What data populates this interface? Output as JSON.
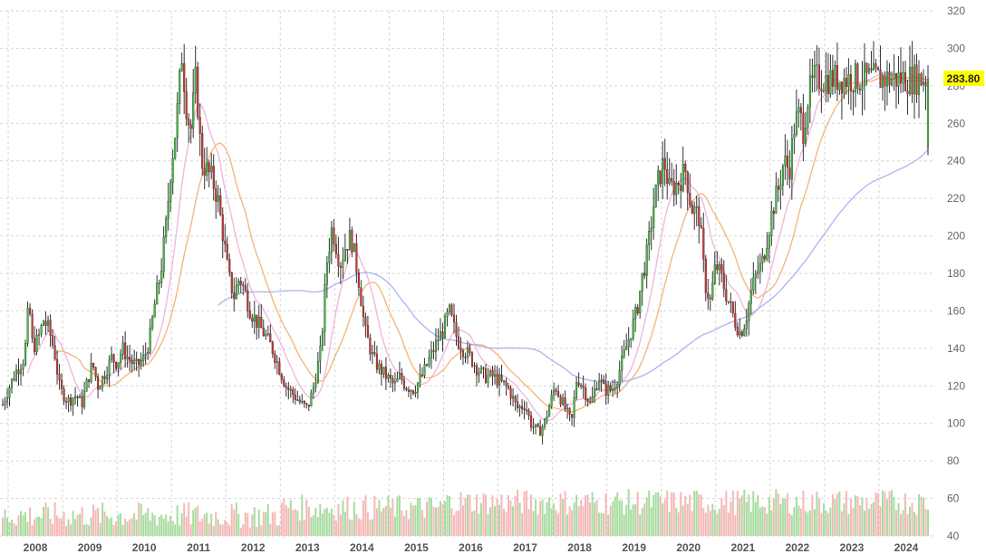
{
  "chart_data": {
    "type": "candlestick",
    "title": "",
    "xlabel": "",
    "ylabel": "",
    "ylim": [
      40,
      320
    ],
    "y_ticks": [
      40,
      60,
      80,
      100,
      120,
      140,
      160,
      180,
      200,
      220,
      240,
      260,
      280,
      300,
      320
    ],
    "x_ticks": [
      "2008",
      "2009",
      "2010",
      "2011",
      "2012",
      "2013",
      "2014",
      "2015",
      "2016",
      "2017",
      "2018",
      "2019",
      "2020",
      "2021",
      "2022",
      "2023",
      "2024"
    ],
    "x_start": 2007.85,
    "x_end": 2025.0,
    "grid": true,
    "last_price": {
      "label": "283.80",
      "value": 283.8,
      "color": "#ffff00"
    },
    "colors": {
      "up": "#44bb44",
      "down": "#cc3333",
      "wick": "#333333",
      "vol_up": "#a8dca0",
      "vol_down": "#f5b8b8"
    },
    "price_anchors": [
      [
        2007.9,
        110
      ],
      [
        2008.0,
        118
      ],
      [
        2008.15,
        128
      ],
      [
        2008.3,
        135
      ],
      [
        2008.38,
        165
      ],
      [
        2008.45,
        140
      ],
      [
        2008.55,
        145
      ],
      [
        2008.65,
        155
      ],
      [
        2008.75,
        150
      ],
      [
        2008.85,
        138
      ],
      [
        2008.95,
        118
      ],
      [
        2009.1,
        112
      ],
      [
        2009.25,
        115
      ],
      [
        2009.35,
        110
      ],
      [
        2009.45,
        122
      ],
      [
        2009.55,
        132
      ],
      [
        2009.65,
        120
      ],
      [
        2009.75,
        125
      ],
      [
        2009.9,
        135
      ],
      [
        2010.0,
        132
      ],
      [
        2010.1,
        140
      ],
      [
        2010.2,
        135
      ],
      [
        2010.35,
        130
      ],
      [
        2010.5,
        135
      ],
      [
        2010.6,
        145
      ],
      [
        2010.7,
        165
      ],
      [
        2010.8,
        180
      ],
      [
        2010.9,
        205
      ],
      [
        2011.0,
        240
      ],
      [
        2011.05,
        250
      ],
      [
        2011.12,
        270
      ],
      [
        2011.2,
        300
      ],
      [
        2011.25,
        275
      ],
      [
        2011.35,
        255
      ],
      [
        2011.45,
        285
      ],
      [
        2011.55,
        240
      ],
      [
        2011.65,
        235
      ],
      [
        2011.75,
        230
      ],
      [
        2011.85,
        220
      ],
      [
        2011.95,
        200
      ],
      [
        2012.05,
        178
      ],
      [
        2012.15,
        168
      ],
      [
        2012.25,
        178
      ],
      [
        2012.35,
        170
      ],
      [
        2012.45,
        160
      ],
      [
        2012.55,
        155
      ],
      [
        2012.7,
        148
      ],
      [
        2012.85,
        140
      ],
      [
        2013.0,
        128
      ],
      [
        2013.1,
        120
      ],
      [
        2013.25,
        115
      ],
      [
        2013.4,
        110
      ],
      [
        2013.5,
        108
      ],
      [
        2013.6,
        118
      ],
      [
        2013.75,
        140
      ],
      [
        2013.85,
        185
      ],
      [
        2013.95,
        205
      ],
      [
        2014.1,
        185
      ],
      [
        2014.2,
        195
      ],
      [
        2014.3,
        200
      ],
      [
        2014.45,
        175
      ],
      [
        2014.55,
        150
      ],
      [
        2014.7,
        135
      ],
      [
        2014.8,
        130
      ],
      [
        2014.95,
        125
      ],
      [
        2015.1,
        120
      ],
      [
        2015.2,
        125
      ],
      [
        2015.3,
        120
      ],
      [
        2015.45,
        118
      ],
      [
        2015.6,
        125
      ],
      [
        2015.75,
        135
      ],
      [
        2015.9,
        145
      ],
      [
        2016.0,
        150
      ],
      [
        2016.1,
        160
      ],
      [
        2016.25,
        145
      ],
      [
        2016.35,
        140
      ],
      [
        2016.5,
        135
      ],
      [
        2016.6,
        130
      ],
      [
        2016.75,
        125
      ],
      [
        2016.9,
        125
      ],
      [
        2017.05,
        122
      ],
      [
        2017.2,
        118
      ],
      [
        2017.35,
        108
      ],
      [
        2017.5,
        110
      ],
      [
        2017.6,
        100
      ],
      [
        2017.75,
        95
      ],
      [
        2017.85,
        100
      ],
      [
        2017.95,
        110
      ],
      [
        2018.05,
        120
      ],
      [
        2018.2,
        110
      ],
      [
        2018.35,
        100
      ],
      [
        2018.45,
        125
      ],
      [
        2018.55,
        120
      ],
      [
        2018.7,
        110
      ],
      [
        2018.85,
        125
      ],
      [
        2018.95,
        118
      ],
      [
        2019.1,
        118
      ],
      [
        2019.2,
        125
      ],
      [
        2019.35,
        140
      ],
      [
        2019.45,
        150
      ],
      [
        2019.55,
        160
      ],
      [
        2019.65,
        178
      ],
      [
        2019.75,
        192
      ],
      [
        2019.85,
        215
      ],
      [
        2019.95,
        230
      ],
      [
        2020.05,
        240
      ],
      [
        2020.15,
        225
      ],
      [
        2020.3,
        228
      ],
      [
        2020.45,
        235
      ],
      [
        2020.55,
        215
      ],
      [
        2020.7,
        210
      ],
      [
        2020.8,
        175
      ],
      [
        2020.9,
        165
      ],
      [
        2021.0,
        185
      ],
      [
        2021.1,
        178
      ],
      [
        2021.2,
        168
      ],
      [
        2021.35,
        155
      ],
      [
        2021.45,
        148
      ],
      [
        2021.55,
        155
      ],
      [
        2021.65,
        170
      ],
      [
        2021.75,
        180
      ],
      [
        2021.85,
        185
      ],
      [
        2021.95,
        200
      ],
      [
        2022.05,
        215
      ],
      [
        2022.15,
        225
      ],
      [
        2022.25,
        240
      ],
      [
        2022.35,
        235
      ],
      [
        2022.45,
        260
      ],
      [
        2022.55,
        265
      ],
      [
        2022.6,
        255
      ],
      [
        2022.7,
        275
      ],
      [
        2022.8,
        282
      ]
    ]
  }
}
